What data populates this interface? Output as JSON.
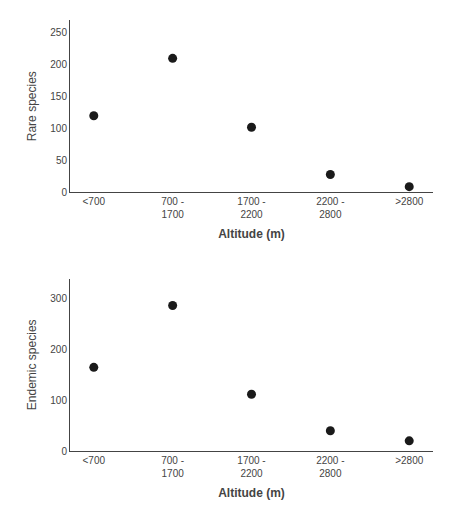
{
  "chart_data": [
    {
      "type": "scatter",
      "categories": [
        "<700",
        "700 -\n1700",
        "1700 -\n2200",
        "2200 -\n2800",
        ">2800"
      ],
      "values": [
        120,
        210,
        102,
        28,
        9
      ],
      "color": "#1a1a1a",
      "xlabel": "Altitude (m)",
      "ylabel": "Rare species",
      "ylim": [
        0,
        270
      ],
      "yticks": [
        0,
        50,
        100,
        150,
        200,
        250
      ],
      "grid": false
    },
    {
      "type": "scatter",
      "categories": [
        "<700",
        "700 -\n1700",
        "1700 -\n2200",
        "2200 -\n2800",
        ">2800"
      ],
      "values": [
        165,
        287,
        112,
        40,
        20
      ],
      "color": "#1a1a1a",
      "xlabel": "Altitude (m)",
      "ylabel": "Endemic species",
      "ylim": [
        0,
        340
      ],
      "yticks": [
        0,
        100,
        200,
        300
      ],
      "grid": false
    }
  ]
}
